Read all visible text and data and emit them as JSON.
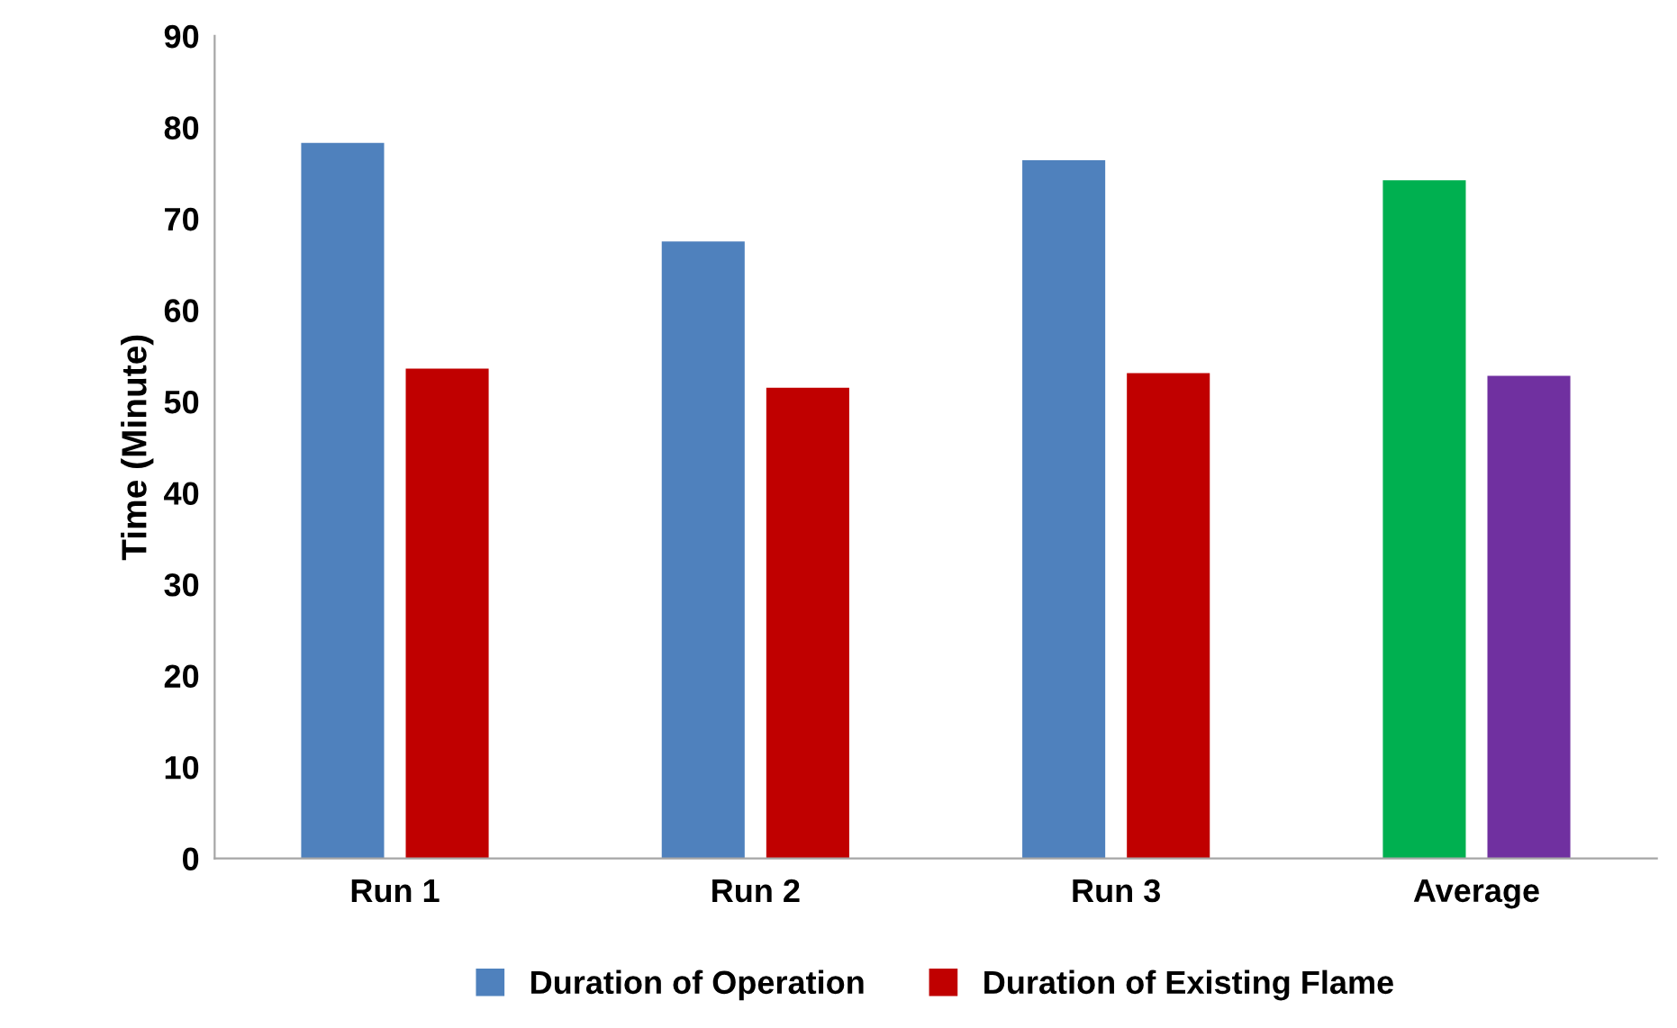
{
  "chart_data": {
    "type": "bar",
    "ylabel": "Time (Minute)",
    "categories": [
      "Run 1",
      "Run 2",
      "Run 3",
      "Average"
    ],
    "series": [
      {
        "name": "Duration of Operation",
        "color": "#4f81bd",
        "colors": [
          "#4f81bd",
          "#4f81bd",
          "#4f81bd",
          "#00b050"
        ],
        "values": [
          78.3,
          67.5,
          76.4,
          74.2
        ]
      },
      {
        "name": "Duration of Existing Flame",
        "color": "#c00000",
        "colors": [
          "#c00000",
          "#c00000",
          "#c00000",
          "#7030a0"
        ],
        "values": [
          53.6,
          51.5,
          53.1,
          52.8
        ]
      }
    ],
    "ylim": [
      0,
      90
    ],
    "yticks": [
      0,
      10,
      20,
      30,
      40,
      50,
      60,
      70,
      80,
      90
    ],
    "grid": false,
    "legend": "bottom"
  }
}
